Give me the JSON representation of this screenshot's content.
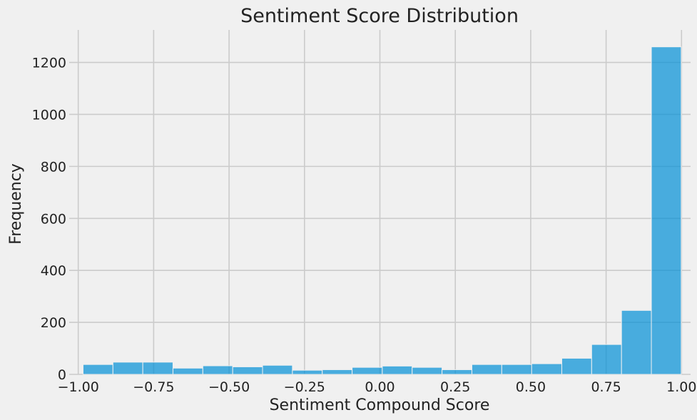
{
  "chart_data": {
    "type": "bar",
    "title": "Sentiment Score Distribution",
    "xlabel": "Sentiment Compound Score",
    "ylabel": "Frequency",
    "xlim": [
      -1.03,
      1.03
    ],
    "ylim": [
      0,
      1325
    ],
    "xticks": [
      -1.0,
      -0.75,
      -0.5,
      -0.25,
      0.0,
      0.25,
      0.5,
      0.75,
      1.0
    ],
    "xtick_labels": [
      "−1.00",
      "−0.75",
      "−0.50",
      "−0.25",
      "0.00",
      "0.25",
      "0.50",
      "0.75",
      "1.00"
    ],
    "yticks": [
      0,
      200,
      400,
      600,
      800,
      1000,
      1200
    ],
    "ytick_labels": [
      "0",
      "200",
      "400",
      "600",
      "800",
      "1000",
      "1200"
    ],
    "grid": true,
    "color": "#008fd5",
    "bins": [
      {
        "x0": -0.984,
        "x1": -0.885,
        "count": 38
      },
      {
        "x0": -0.885,
        "x1": -0.786,
        "count": 47
      },
      {
        "x0": -0.786,
        "x1": -0.686,
        "count": 47
      },
      {
        "x0": -0.686,
        "x1": -0.587,
        "count": 24
      },
      {
        "x0": -0.587,
        "x1": -0.488,
        "count": 33
      },
      {
        "x0": -0.488,
        "x1": -0.389,
        "count": 29
      },
      {
        "x0": -0.389,
        "x1": -0.29,
        "count": 35
      },
      {
        "x0": -0.29,
        "x1": -0.191,
        "count": 16
      },
      {
        "x0": -0.191,
        "x1": -0.092,
        "count": 18
      },
      {
        "x0": -0.092,
        "x1": 0.008,
        "count": 27
      },
      {
        "x0": 0.008,
        "x1": 0.107,
        "count": 32
      },
      {
        "x0": 0.107,
        "x1": 0.206,
        "count": 27
      },
      {
        "x0": 0.206,
        "x1": 0.305,
        "count": 18
      },
      {
        "x0": 0.305,
        "x1": 0.404,
        "count": 38
      },
      {
        "x0": 0.404,
        "x1": 0.503,
        "count": 38
      },
      {
        "x0": 0.503,
        "x1": 0.603,
        "count": 41
      },
      {
        "x0": 0.603,
        "x1": 0.702,
        "count": 62
      },
      {
        "x0": 0.702,
        "x1": 0.801,
        "count": 115
      },
      {
        "x0": 0.801,
        "x1": 0.9,
        "count": 246
      },
      {
        "x0": 0.9,
        "x1": 0.999,
        "count": 1260
      }
    ]
  }
}
